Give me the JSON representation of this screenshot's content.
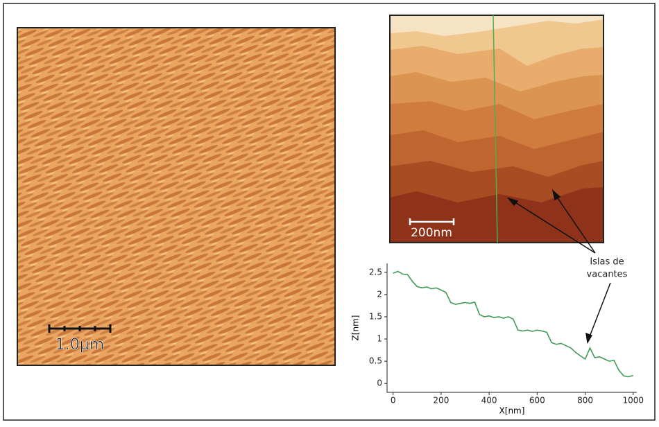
{
  "figure": {
    "left_scale_label": "1.0µm",
    "right_scale_label": "200nm",
    "annotation": [
      "Islas de",
      "vacantes"
    ]
  },
  "chart_data": {
    "type": "line",
    "x_label": "X[nm]",
    "y_label": "Z[nm]",
    "x": [
      0,
      20,
      40,
      60,
      80,
      100,
      120,
      140,
      160,
      180,
      200,
      220,
      240,
      260,
      280,
      300,
      320,
      340,
      360,
      380,
      400,
      420,
      440,
      460,
      480,
      500,
      520,
      540,
      560,
      580,
      600,
      620,
      640,
      660,
      680,
      700,
      720,
      740,
      760,
      780,
      800,
      820,
      840,
      860,
      880,
      900,
      920,
      940,
      960,
      980,
      1000
    ],
    "series": [
      {
        "color": "#3f9a55",
        "values": [
          2.48,
          2.52,
          2.46,
          2.45,
          2.3,
          2.18,
          2.15,
          2.17,
          2.13,
          2.15,
          2.1,
          2.05,
          1.82,
          1.78,
          1.8,
          1.82,
          1.8,
          1.83,
          1.55,
          1.5,
          1.52,
          1.48,
          1.5,
          1.47,
          1.5,
          1.45,
          1.2,
          1.18,
          1.2,
          1.17,
          1.2,
          1.18,
          1.15,
          0.92,
          0.88,
          0.9,
          0.85,
          0.8,
          0.7,
          0.62,
          0.55,
          0.8,
          0.58,
          0.6,
          0.55,
          0.5,
          0.52,
          0.3,
          0.17,
          0.15,
          0.18
        ]
      }
    ],
    "xlim": [
      -25,
      1015
    ],
    "ylim": [
      -0.2,
      2.7
    ],
    "xticks": [
      0,
      200,
      400,
      600,
      800,
      1000
    ],
    "yticks": [
      0,
      0.5,
      1,
      1.5,
      2,
      2.5
    ],
    "grid": false
  }
}
